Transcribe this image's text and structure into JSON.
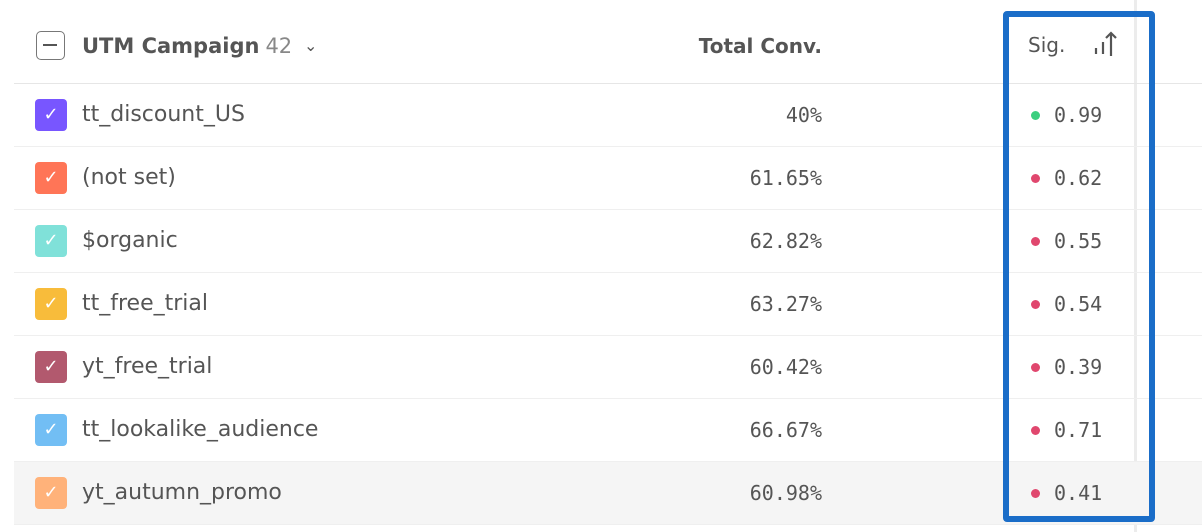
{
  "header": {
    "title": "UTM Campaign",
    "count": "42",
    "conv_label": "Total Conv.",
    "sig_label": "Sig."
  },
  "colors": {
    "positive": "#3ccf7f",
    "negative": "#e0476e",
    "highlight": "#1a6dc8"
  },
  "rows": [
    {
      "name": "tt_discount_US",
      "conv": "40%",
      "sig": "0.99",
      "color": "#7856ff",
      "sig_status": "positive"
    },
    {
      "name": "(not set)",
      "conv": "61.65%",
      "sig": "0.62",
      "color": "#ff7557",
      "sig_status": "negative"
    },
    {
      "name": "$organic",
      "conv": "62.82%",
      "sig": "0.55",
      "color": "#80e1d9",
      "sig_status": "negative"
    },
    {
      "name": "tt_free_trial",
      "conv": "63.27%",
      "sig": "0.54",
      "color": "#f8bc3b",
      "sig_status": "negative"
    },
    {
      "name": "yt_free_trial",
      "conv": "60.42%",
      "sig": "0.39",
      "color": "#b2596e",
      "sig_status": "negative"
    },
    {
      "name": "tt_lookalike_audience",
      "conv": "66.67%",
      "sig": "0.71",
      "color": "#72bef4",
      "sig_status": "negative"
    },
    {
      "name": "yt_autumn_promo",
      "conv": "60.98%",
      "sig": "0.41",
      "color": "#ffb27a",
      "sig_status": "negative"
    }
  ]
}
